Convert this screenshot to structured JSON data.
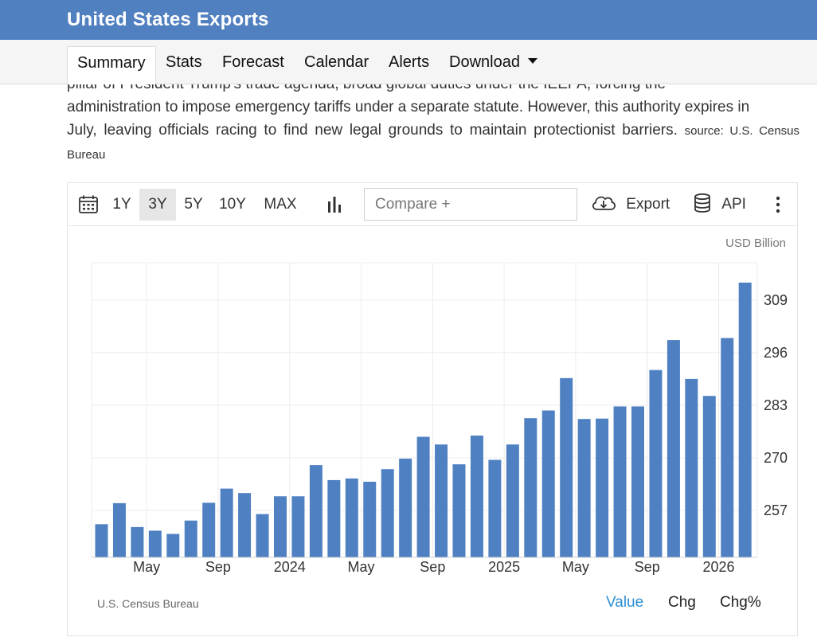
{
  "header": {
    "title": "United States Exports"
  },
  "nav": {
    "tabs": [
      {
        "label": "Summary"
      },
      {
        "label": "Stats"
      },
      {
        "label": "Forecast"
      },
      {
        "label": "Calendar"
      },
      {
        "label": "Alerts"
      },
      {
        "label": "Download"
      }
    ]
  },
  "article": {
    "line0": "pillar of President Trump's trade agenda, broad global duties under the IEEPA, forcing the",
    "line1": "administration to impose emergency tariffs under a separate statute. However, this authority expires in",
    "line2": "July, leaving officials racing to find new legal grounds to maintain protectionist barriers.",
    "source": "source: U.S. Census Bureau"
  },
  "toolbar": {
    "ranges": [
      "1Y",
      "3Y",
      "5Y",
      "10Y",
      "MAX"
    ],
    "selected_range": "3Y",
    "compare_placeholder": "Compare +",
    "export_label": "Export",
    "api_label": "API"
  },
  "chart_data": {
    "type": "bar",
    "unit": "USD Billion",
    "color": "#4f81c2",
    "x_tick_labels": [
      "May",
      "Sep",
      "2024",
      "May",
      "Sep",
      "2025",
      "May",
      "Sep",
      "2026"
    ],
    "y_ticks": [
      257,
      270,
      283,
      296,
      309
    ],
    "ylim": [
      245.4,
      318.2
    ],
    "grid": true,
    "values": [
      253.6,
      258.8,
      252.9,
      252.0,
      251.2,
      254.5,
      258.9,
      262.4,
      261.3,
      256.1,
      260.5,
      260.5,
      268.2,
      264.5,
      264.9,
      264.1,
      267.2,
      269.8,
      275.2,
      273.3,
      268.4,
      275.5,
      269.5,
      273.3,
      279.8,
      281.7,
      289.7,
      279.6,
      279.7,
      282.7,
      282.7,
      291.7,
      299.1,
      289.5,
      285.3,
      299.6,
      313.3
    ]
  },
  "footer": {
    "source": "U.S. Census Bureau",
    "tabs": [
      "Value",
      "Chg",
      "Chg%"
    ],
    "active_tab": "Value"
  }
}
